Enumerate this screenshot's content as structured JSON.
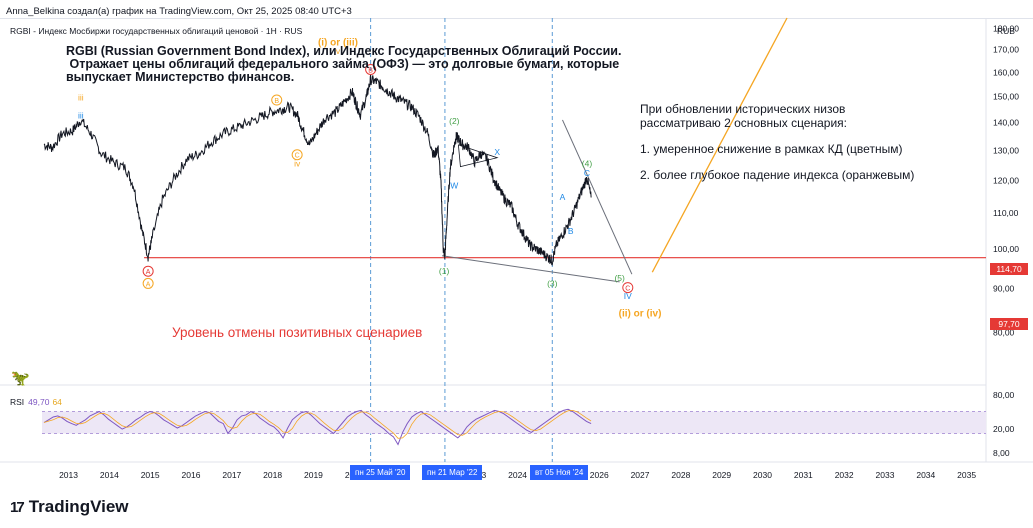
{
  "header": "Anna_Belkina создал(а) график на TradingView.com, Окт 25, 2025 08:40 UTC+3",
  "symbol_line": "RGBI - Индекс Мосбиржи государственных облигаций ценовой · 1H · RUS",
  "currency": "RUB",
  "description": [
    "RGBI (Russian Government Bond Index), или Индекс Государственных Облигаций России.",
    " Отражает цены облигаций федерального займа (ОФЗ) — это долговые бумаги, которые",
    "выпускает Министерство финансов."
  ],
  "scenarios": {
    "intro": [
      "При обновлении исторических низов",
      "рассматриваю 2 основных сценария:"
    ],
    "items": [
      "1. умеренное снижение в рамках КД (цветным)",
      "2. более глубокое падение индекса (оранжевым)"
    ]
  },
  "cancel_level_label": "Уровень отмены позитивных сценариев",
  "brand": "TradingView",
  "brand_logo": "17",
  "dino_icon": "🦖",
  "rsi": {
    "label": "RSI",
    "v1": "49,70",
    "v2": "64"
  },
  "last_price": "114,70",
  "cancel_price": "97,70",
  "date_tags": [
    {
      "year": 2020.4,
      "label": "пн 25 Май '20"
    },
    {
      "year": 2022.22,
      "label": "пн 21 Мар '22"
    },
    {
      "year": 2024.85,
      "label": "вт 05 Ноя '24"
    }
  ],
  "colors": {
    "price": "#131722",
    "red": "#e53935",
    "orange": "#f5a623",
    "green": "#43a047",
    "blue": "#1e88e5",
    "violet": "#7e57c2",
    "dash": "#5b9bd5",
    "rsi_band": "#ede7f6"
  },
  "chart_data": {
    "type": "line",
    "xlabel": "",
    "ylabel": "",
    "x_axis": {
      "range": [
        2012.35,
        2035.45
      ],
      "ticks": [
        "2013",
        "2014",
        "2015",
        "2016",
        "2017",
        "2018",
        "2019",
        "2020",
        "2021",
        "2022",
        "2023",
        "2024",
        "2025",
        "2026",
        "2027",
        "2028",
        "2029",
        "2030",
        "2031",
        "2032",
        "2033",
        "2034",
        "2035"
      ]
    },
    "y_axis": {
      "range": [
        74,
        185
      ],
      "scale": "log",
      "ticks": [
        "180,00",
        "170,00",
        "160,00",
        "150,00",
        "140,00",
        "130,00",
        "120,00",
        "110,00",
        "100,00",
        "90,00",
        "80,00"
      ]
    },
    "series": [
      {
        "x": [
          2012.4,
          2012.6,
          2012.85,
          2013.1,
          2013.3,
          2013.55,
          2013.8,
          2014.1,
          2014.4,
          2014.6,
          2014.8,
          2014.95,
          2015.05,
          2015.3,
          2015.6,
          2015.9,
          2016.2,
          2016.5,
          2016.8,
          2017.1,
          2017.4,
          2017.7,
          2017.95,
          2018.2,
          2018.4,
          2018.6,
          2018.75,
          2018.9,
          2019.1,
          2019.3,
          2019.55,
          2019.75,
          2019.95,
          2020.05,
          2020.15,
          2020.3,
          2020.4,
          2020.55,
          2020.7,
          2020.85,
          2021.0,
          2021.2,
          2021.4,
          2021.6,
          2021.8,
          2021.95,
          2022.05,
          2022.12,
          2022.18,
          2022.22,
          2022.27,
          2022.35,
          2022.45,
          2022.5,
          2022.55,
          2022.65,
          2022.8,
          2022.95,
          2023.1,
          2023.25,
          2023.4,
          2023.55,
          2023.7,
          2023.85,
          2024.0,
          2024.15,
          2024.3,
          2024.45,
          2024.6,
          2024.75,
          2024.85,
          2024.95,
          2025.1,
          2025.25,
          2025.4,
          2025.55,
          2025.7,
          2025.8
        ],
        "y": [
          132,
          131,
          136,
          137,
          141,
          136,
          129,
          126,
          124,
          118,
          105,
          98,
          103,
          114,
          121,
          127,
          129,
          133,
          136,
          138,
          140,
          142,
          144,
          145,
          146,
          143,
          137,
          132,
          137,
          142,
          144,
          148,
          152,
          147,
          143,
          150,
          157,
          156,
          154,
          152,
          150,
          148,
          146,
          142,
          136,
          128,
          131,
          120,
          100,
          98,
          108,
          124,
          132,
          135,
          134,
          132,
          131,
          126,
          129,
          127,
          121,
          117,
          114,
          112,
          107,
          104,
          101,
          100,
          99,
          97.7,
          97,
          101,
          104,
          107,
          111,
          116,
          121,
          114.7
        ]
      }
    ],
    "hlines": [
      {
        "y": 97.7,
        "label": "97,70"
      }
    ],
    "vlines": [
      2020.4,
      2022.22,
      2024.85
    ],
    "orange_projection": {
      "x": [
        2027.3,
        2030.6
      ],
      "y": [
        94,
        186
      ]
    },
    "triangle_lines": [
      {
        "x": [
          2025.1,
          2026.8
        ],
        "y": [
          141,
          93.5
        ]
      },
      {
        "x": [
          2022.15,
          2026.5
        ],
        "y": [
          98.2,
          91.6
        ]
      }
    ],
    "wave_labels": [
      {
        "x": 2013.3,
        "y": 148.5,
        "text": "iii",
        "color": "orange"
      },
      {
        "x": 2013.3,
        "y": 141.5,
        "text": "iii",
        "color": "blue"
      },
      {
        "x": 2019.6,
        "y": 172,
        "text": "(i) or (iii)",
        "color": "orange"
      },
      {
        "x": 2019.6,
        "y": 168,
        "text": "v",
        "color": "orange"
      },
      {
        "x": 2022.45,
        "y": 139.5,
        "text": "(2)",
        "color": "green"
      },
      {
        "x": 2023.5,
        "y": 128.5,
        "text": "X",
        "color": "blue"
      },
      {
        "x": 2022.45,
        "y": 117.5,
        "text": "W",
        "color": "blue"
      },
      {
        "x": 2022.2,
        "y": 93.5,
        "text": "(1)",
        "color": "green"
      },
      {
        "x": 2024.85,
        "y": 90.5,
        "text": "(3)",
        "color": "green"
      },
      {
        "x": 2025.1,
        "y": 114,
        "text": "A",
        "color": "blue"
      },
      {
        "x": 2025.3,
        "y": 104,
        "text": "B",
        "color": "blue"
      },
      {
        "x": 2025.7,
        "y": 124.5,
        "text": "(4)",
        "color": "green"
      },
      {
        "x": 2025.7,
        "y": 121.5,
        "text": "C",
        "color": "blue"
      },
      {
        "x": 2026.5,
        "y": 91.8,
        "text": "(5)",
        "color": "green"
      },
      {
        "x": 2026.7,
        "y": 87.5,
        "text": "IV",
        "color": "blue"
      },
      {
        "x": 2018.6,
        "y": 124.5,
        "text": "iv",
        "color": "orange"
      },
      {
        "x": 2027.0,
        "y": 83.5,
        "text": "(ii) or (iv)",
        "color": "orange"
      }
    ],
    "circle_labels": [
      {
        "x": 2020.4,
        "y": 160,
        "text": "B",
        "color": "red"
      },
      {
        "x": 2018.1,
        "y": 147.5,
        "text": "B",
        "color": "orange"
      },
      {
        "x": 2018.6,
        "y": 127.5,
        "text": "C",
        "color": "orange"
      },
      {
        "x": 2014.95,
        "y": 93.5,
        "text": "A",
        "color": "red"
      },
      {
        "x": 2014.95,
        "y": 90.5,
        "text": "A",
        "color": "orange"
      },
      {
        "x": 2026.7,
        "y": 89.5,
        "text": "C",
        "color": "red"
      }
    ],
    "rsi_panel": {
      "ticks": [
        "80,00",
        "20,00",
        "8,00"
      ],
      "band": [
        30,
        70
      ],
      "rsi": [
        50,
        55,
        60,
        62,
        58,
        52,
        48,
        45,
        50,
        55,
        62,
        66,
        70,
        64,
        56,
        50,
        44,
        38,
        42,
        48,
        55,
        60,
        66,
        70,
        68,
        62,
        55,
        50,
        45,
        40,
        44,
        50,
        56,
        62,
        66,
        70,
        68,
        60,
        52,
        48,
        30,
        40,
        55,
        62,
        64,
        70,
        66,
        58,
        52,
        46,
        42,
        34,
        22,
        40,
        55,
        62,
        68,
        70,
        64,
        56,
        48,
        42,
        36,
        30,
        40,
        50,
        60,
        66,
        70,
        72,
        64,
        58,
        50,
        44,
        38,
        30,
        24,
        10,
        32,
        48,
        60,
        66,
        70,
        64,
        58,
        52,
        46,
        40,
        34,
        28,
        22,
        30,
        42,
        50,
        56,
        60,
        64,
        68,
        72,
        70,
        66,
        60,
        54,
        48,
        42,
        36,
        32,
        38,
        44,
        50,
        56,
        62,
        68,
        72,
        74,
        70,
        64,
        58,
        52,
        48
      ]
    }
  }
}
